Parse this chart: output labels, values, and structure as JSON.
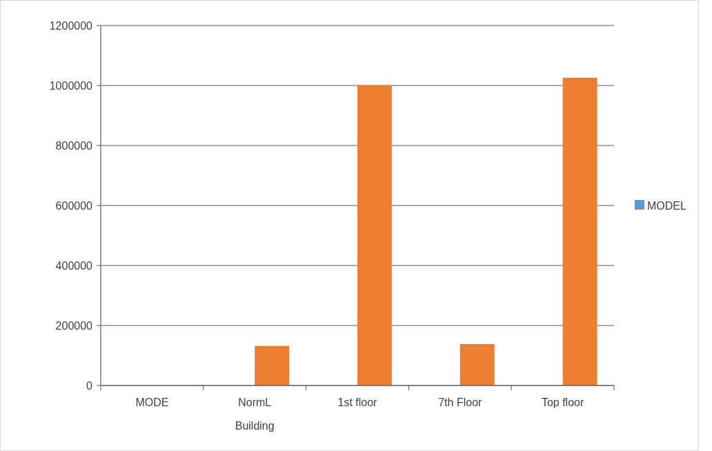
{
  "chart_data": {
    "type": "bar",
    "categories": [
      "MODE",
      "NormL Building",
      "1st floor",
      "7th Floor",
      "Top floor"
    ],
    "series": [
      {
        "name": "MODEL",
        "color": "#5b9bd5",
        "values": [
          0,
          0,
          0,
          0,
          0
        ]
      },
      {
        "color": "#ed7d31",
        "values": [
          0,
          132000,
          1000000,
          138000,
          1026000
        ]
      }
    ],
    "ylim": [
      0,
      1200000
    ],
    "yticks": [
      0,
      200000,
      400000,
      600000,
      800000,
      1000000,
      1200000
    ],
    "grid": "y",
    "legend": "right"
  }
}
